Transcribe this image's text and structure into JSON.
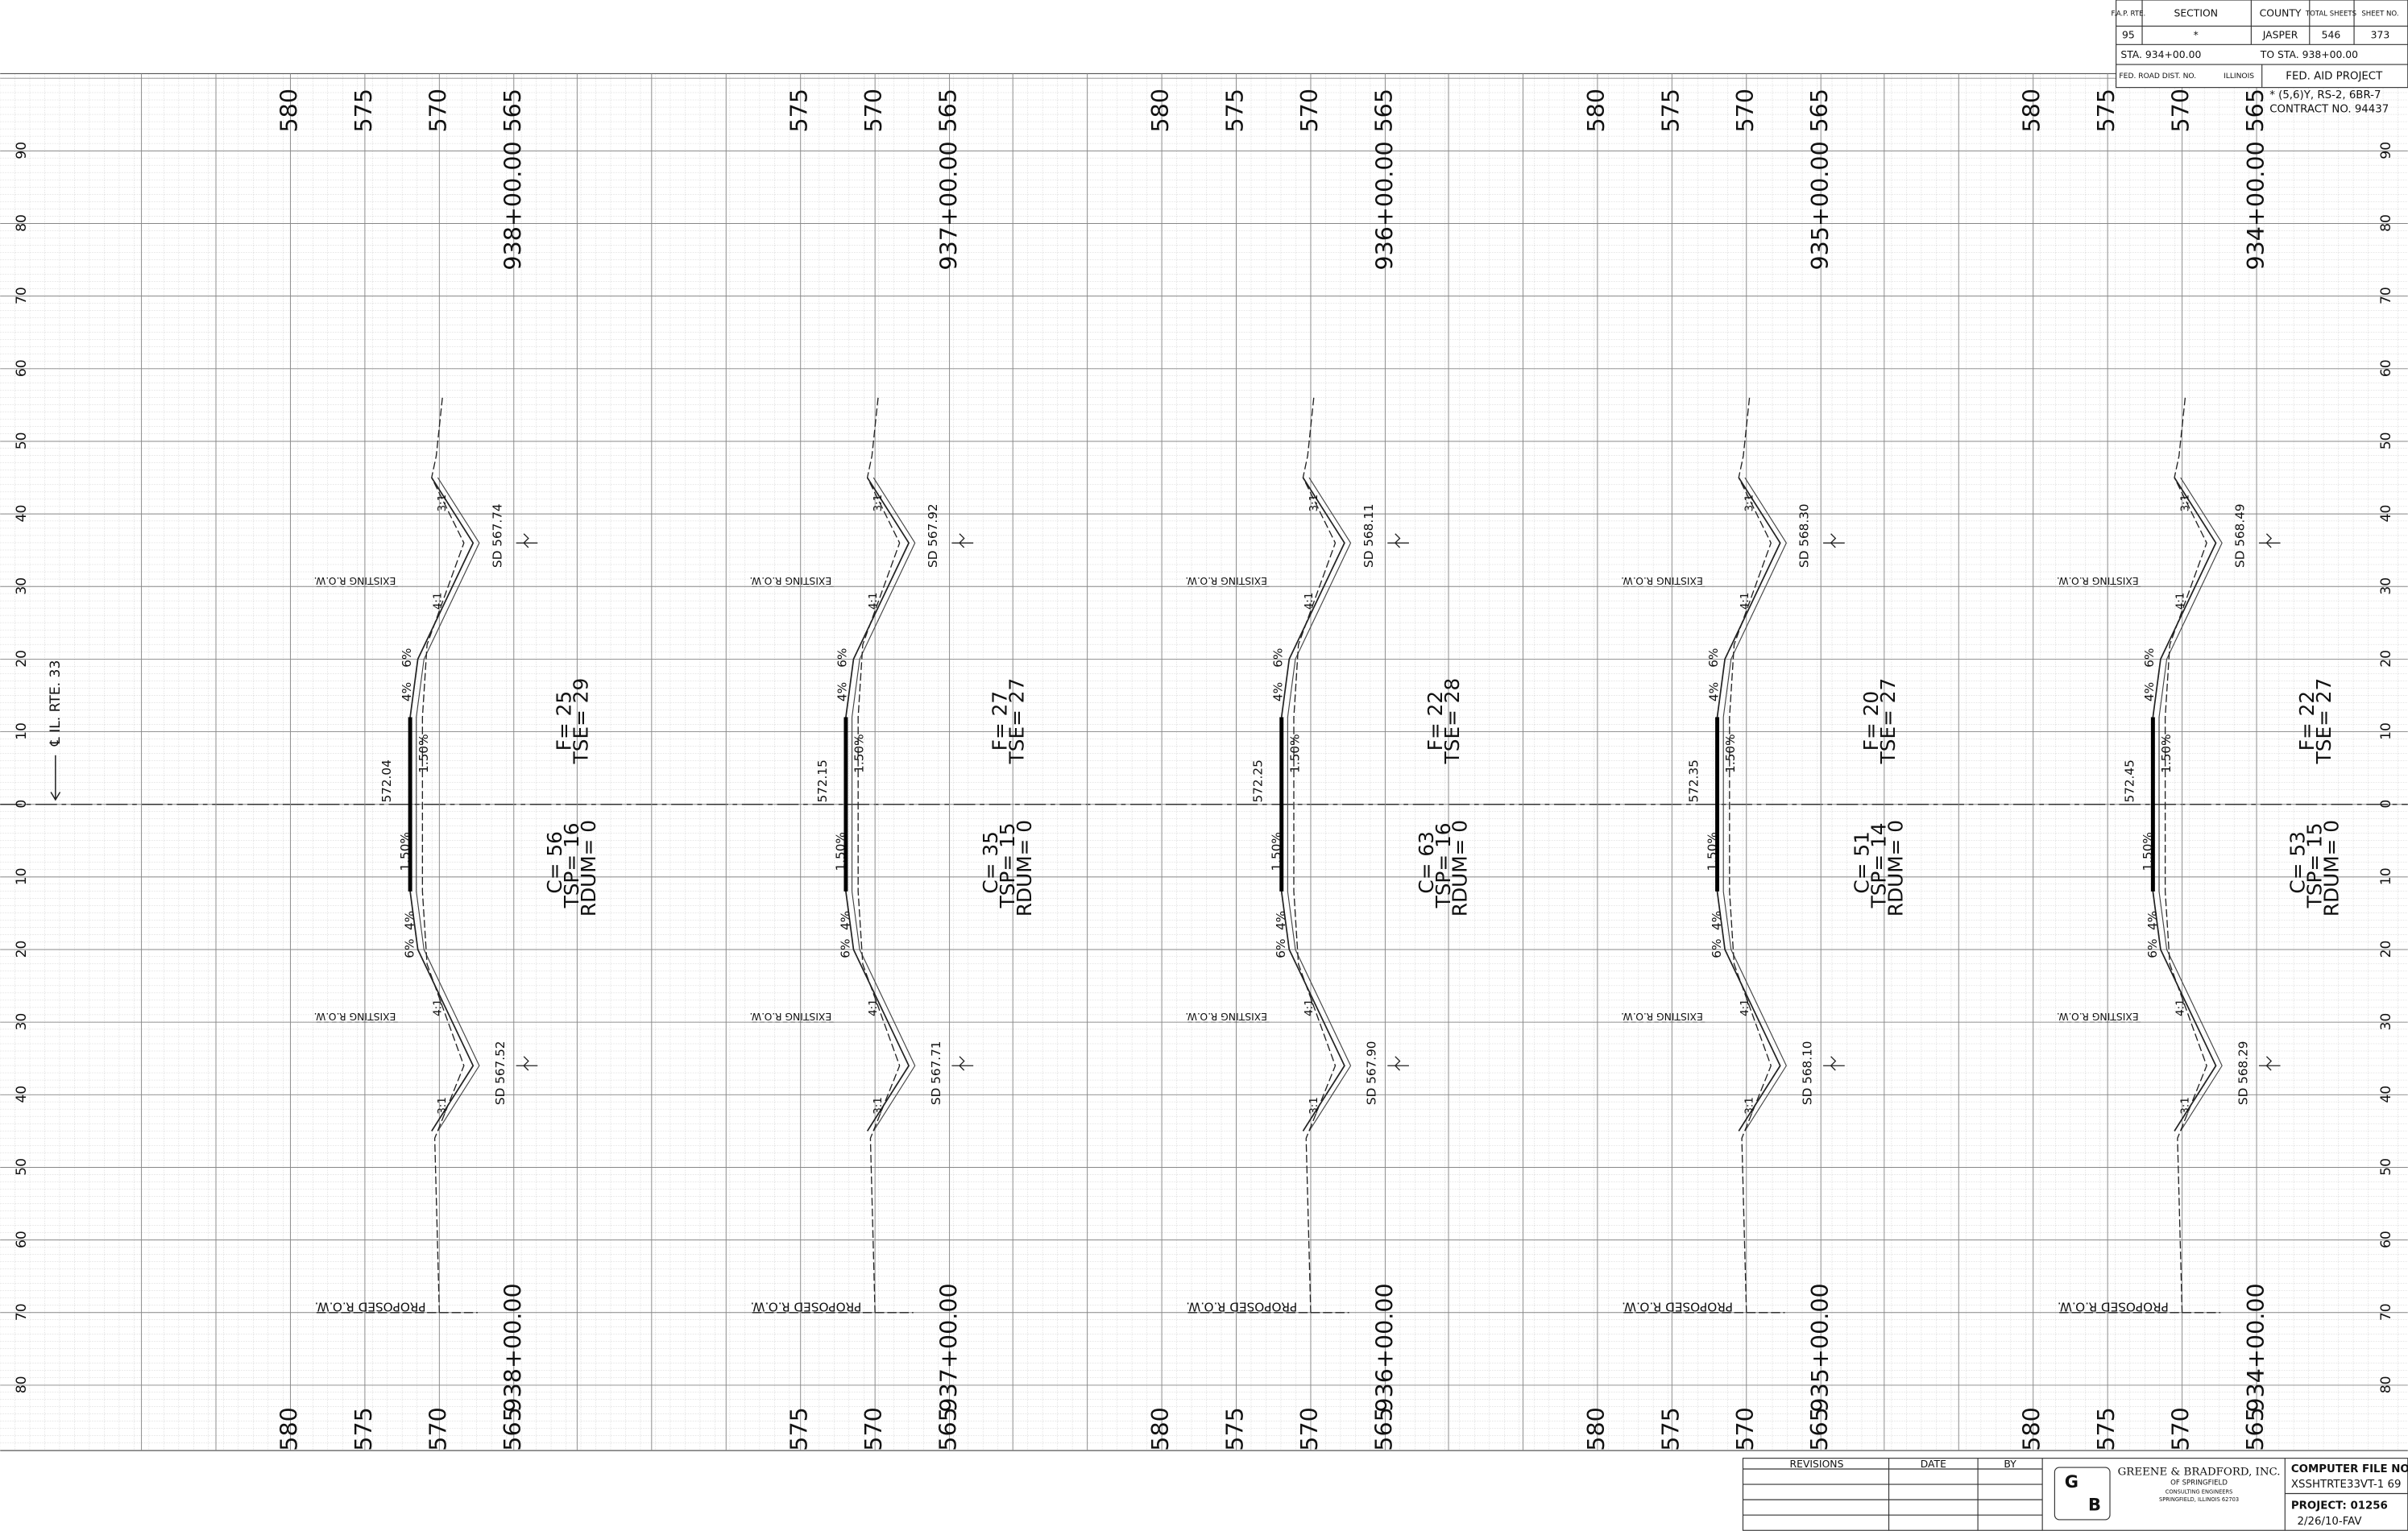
{
  "title_block": {
    "headers": [
      "F.A.P. RTE.",
      "SECTION",
      "COUNTY",
      "TOTAL SHEETS",
      "SHEET NO."
    ],
    "values": [
      "95",
      "*",
      "JASPER",
      "546",
      "373"
    ],
    "sta_from": "STA. 934+00.00",
    "sta_to": "TO STA. 938+00.00",
    "fed_road_dist": "FED. ROAD DIST. NO.",
    "state": "ILLINOIS",
    "fed_aid": "FED. AID PROJECT",
    "note": "* (5,6)Y, RS-2, 6BR-7",
    "contract": "CONTRACT NO. 94437"
  },
  "centerline_label": "℄ IL. RTE. 33",
  "offset_labels": [
    "90",
    "80",
    "70",
    "60",
    "50",
    "40",
    "30",
    "20",
    "10",
    "0",
    "10",
    "20",
    "30",
    "40",
    "50",
    "60",
    "70",
    "80"
  ],
  "sections": [
    {
      "station": "938+00.00",
      "elevations": [
        "580",
        "575",
        "570",
        "565"
      ],
      "grade_elev": "572.04",
      "cross_slope_top": "1.50%",
      "cross_slope_bottom": "1.50%",
      "shoulder_top": [
        "4%",
        "6%"
      ],
      "shoulder_bottom": [
        "6%",
        "4%"
      ],
      "sd_top": "SD 567.74",
      "sd_bottom": "SD 567.52",
      "slopes_top": [
        "4:1",
        "3:1"
      ],
      "slopes_bottom": [
        "4:1",
        "3:1"
      ],
      "existing_row": "EXISTING R.O.W.",
      "proposed_row": "PROPOSED R.O.W.",
      "cut": [
        "C= 56",
        "TSP= 16",
        "RDUM= 0"
      ],
      "fill": [
        "F= 25",
        "TSE= 29"
      ]
    },
    {
      "station": "937+00.00",
      "elevations": [
        "575",
        "570",
        "565"
      ],
      "grade_elev": "572.15",
      "cross_slope_top": "1.50%",
      "cross_slope_bottom": "1.50%",
      "shoulder_top": [
        "4%",
        "6%"
      ],
      "shoulder_bottom": [
        "6%",
        "4%"
      ],
      "sd_top": "SD 567.92",
      "sd_bottom": "SD 567.71",
      "slopes_top": [
        "4:1",
        "3:1"
      ],
      "slopes_bottom": [
        "4:1",
        "3:1"
      ],
      "existing_row": "EXISTING R.O.W.",
      "proposed_row": "PROPOSED R.O.W.",
      "cut": [
        "C= 35",
        "TSP= 15",
        "RDUM= 0"
      ],
      "fill": [
        "F= 27",
        "TSE= 27"
      ]
    },
    {
      "station": "936+00.00",
      "elevations": [
        "580",
        "575",
        "570",
        "565"
      ],
      "grade_elev": "572.25",
      "cross_slope_top": "1.50%",
      "cross_slope_bottom": "1.50%",
      "shoulder_top": [
        "4%",
        "6%"
      ],
      "shoulder_bottom": [
        "6%",
        "4%"
      ],
      "sd_top": "SD 568.11",
      "sd_bottom": "SD 567.90",
      "slopes_top": [
        "4:1",
        "3:1"
      ],
      "slopes_bottom": [
        "4:1",
        "3:1"
      ],
      "existing_row": "EXISTING R.O.W.",
      "proposed_row": "PROPOSED R.O.W.",
      "cut": [
        "C= 63",
        "TSP= 16",
        "RDUM= 0"
      ],
      "fill": [
        "F= 22",
        "TSE= 28"
      ]
    },
    {
      "station": "935+00.00",
      "elevations": [
        "580",
        "575",
        "570",
        "565"
      ],
      "grade_elev": "572.35",
      "cross_slope_top": "1.50%",
      "cross_slope_bottom": "1.50%",
      "shoulder_top": [
        "4%",
        "6%"
      ],
      "shoulder_bottom": [
        "6%",
        "4%"
      ],
      "sd_top": "SD 568.30",
      "sd_bottom": "SD 568.10",
      "slopes_top": [
        "4:1",
        "3:1"
      ],
      "slopes_bottom": [
        "4:1",
        "3:1"
      ],
      "existing_row": "EXISTING R.O.W.",
      "proposed_row": "PROPOSED R.O.W.",
      "cut": [
        "C= 51",
        "TSP= 14",
        "RDUM= 0"
      ],
      "fill": [
        "F= 20",
        "TSE= 27"
      ]
    },
    {
      "station": "934+00.00",
      "elevations": [
        "580",
        "575",
        "570",
        "565"
      ],
      "grade_elev": "572.45",
      "cross_slope_top": "1.50%",
      "cross_slope_bottom": "1.50%",
      "shoulder_top": [
        "4%",
        "6%"
      ],
      "shoulder_bottom": [
        "6%",
        "4%"
      ],
      "sd_top": "SD 568.49",
      "sd_bottom": "SD 568.29",
      "slopes_top": [
        "4:1",
        "3:1"
      ],
      "slopes_bottom": [
        "4:1",
        "3:1"
      ],
      "existing_row": "EXISTING R.O.W.",
      "proposed_row": "PROPOSED R.O.W.",
      "cut": [
        "C= 53",
        "TSP= 15",
        "RDUM= 0"
      ],
      "fill": [
        "F= 22",
        "TSE= 27"
      ]
    }
  ],
  "revisions": {
    "headers": [
      "REVISIONS",
      "DATE",
      "BY"
    ]
  },
  "firm": {
    "logo": [
      "G",
      "B"
    ],
    "name": "GREENE & BRADFORD, INC.",
    "city": "OF SPRINGFIELD",
    "lines": [
      "CONSULTING ENGINEERS",
      "SPRINGFIELD, ILLINOIS 62703"
    ]
  },
  "file": {
    "label": "COMPUTER FILE NO.",
    "name": "XSSHTRTE33VT-1 69",
    "project": "PROJECT: 01256",
    "date": "2/26/10-FAV"
  }
}
